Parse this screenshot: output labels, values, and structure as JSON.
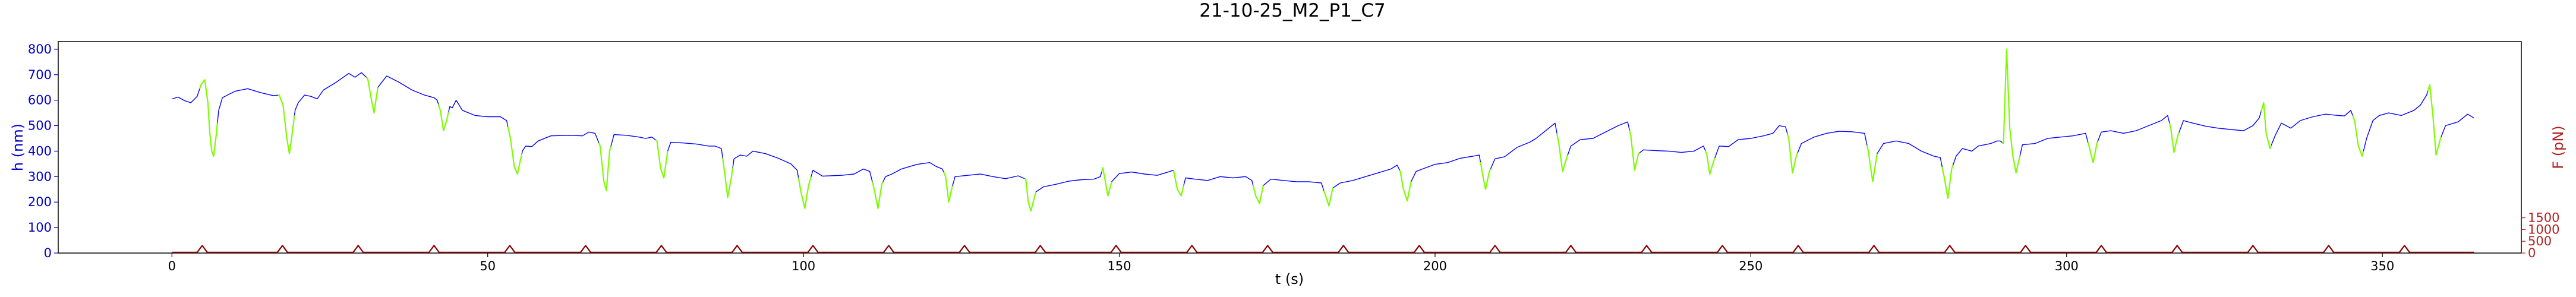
{
  "chart_data": {
    "type": "line",
    "title": "21-10-25_M2_P1_C7",
    "xlabel": "t (s)",
    "ylabel_left": "h (nm)",
    "ylabel_right": "F (pN)",
    "xlim": [
      -18,
      372
    ],
    "ylim_left": [
      0,
      830
    ],
    "ylim_right": [
      0,
      9000
    ],
    "x_ticks": [
      0,
      50,
      100,
      150,
      200,
      250,
      300,
      350
    ],
    "y_ticks_left": [
      0,
      100,
      200,
      300,
      400,
      500,
      600,
      700,
      800
    ],
    "y_ticks_right": [
      0,
      500,
      1000,
      1500
    ],
    "colors": {
      "height_trace": "#0000ff",
      "approach_segments": "#7cfc00",
      "force_trace": "#8b0000",
      "left_axis": "#0000cd",
      "right_axis": "#b22222"
    },
    "height_keypoints": [
      [
        0,
        605
      ],
      [
        1,
        612
      ],
      [
        2,
        598
      ],
      [
        3,
        590
      ],
      [
        4,
        615
      ],
      [
        4.6,
        660
      ],
      [
        5.2,
        680
      ],
      [
        5.7,
        590
      ],
      [
        6,
        470
      ],
      [
        6.3,
        400
      ],
      [
        6.6,
        380
      ],
      [
        7,
        460
      ],
      [
        7.4,
        560
      ],
      [
        8,
        610
      ],
      [
        10,
        635
      ],
      [
        12,
        645
      ],
      [
        14,
        630
      ],
      [
        16,
        618
      ],
      [
        17,
        620
      ],
      [
        17.6,
        580
      ],
      [
        18.2,
        450
      ],
      [
        18.6,
        390
      ],
      [
        19,
        460
      ],
      [
        19.5,
        560
      ],
      [
        20,
        590
      ],
      [
        21,
        620
      ],
      [
        22,
        615
      ],
      [
        23,
        605
      ],
      [
        24,
        640
      ],
      [
        26,
        670
      ],
      [
        28,
        705
      ],
      [
        29,
        690
      ],
      [
        30,
        708
      ],
      [
        31,
        685
      ],
      [
        31.6,
        600
      ],
      [
        32,
        550
      ],
      [
        32.6,
        650
      ],
      [
        34,
        695
      ],
      [
        36,
        670
      ],
      [
        38,
        640
      ],
      [
        40,
        620
      ],
      [
        41.5,
        610
      ],
      [
        42,
        600
      ],
      [
        42.5,
        560
      ],
      [
        43,
        480
      ],
      [
        43.5,
        520
      ],
      [
        44,
        575
      ],
      [
        44.4,
        570
      ],
      [
        45,
        600
      ],
      [
        46,
        560
      ],
      [
        48,
        540
      ],
      [
        50,
        535
      ],
      [
        52,
        535
      ],
      [
        53,
        520
      ],
      [
        53.6,
        450
      ],
      [
        54.2,
        340
      ],
      [
        54.7,
        310
      ],
      [
        55.5,
        400
      ],
      [
        56,
        420
      ],
      [
        57,
        418
      ],
      [
        58,
        440
      ],
      [
        60,
        460
      ],
      [
        63,
        462
      ],
      [
        65,
        460
      ],
      [
        66,
        475
      ],
      [
        67,
        470
      ],
      [
        67.8,
        420
      ],
      [
        68.4,
        280
      ],
      [
        68.8,
        245
      ],
      [
        69.3,
        400
      ],
      [
        70,
        465
      ],
      [
        72,
        462
      ],
      [
        74,
        455
      ],
      [
        75,
        450
      ],
      [
        76,
        455
      ],
      [
        76.8,
        440
      ],
      [
        77.4,
        330
      ],
      [
        77.9,
        295
      ],
      [
        78.5,
        400
      ],
      [
        79,
        435
      ],
      [
        81,
        432
      ],
      [
        83,
        428
      ],
      [
        85,
        420
      ],
      [
        86,
        420
      ],
      [
        87,
        410
      ],
      [
        87.6,
        300
      ],
      [
        88,
        218
      ],
      [
        88.6,
        300
      ],
      [
        89,
        370
      ],
      [
        90,
        385
      ],
      [
        91,
        380
      ],
      [
        92,
        400
      ],
      [
        94,
        390
      ],
      [
        96,
        372
      ],
      [
        98,
        350
      ],
      [
        99,
        325
      ],
      [
        99.6,
        240
      ],
      [
        100.2,
        175
      ],
      [
        100.8,
        265
      ],
      [
        101.5,
        325
      ],
      [
        103,
        302
      ],
      [
        106,
        305
      ],
      [
        108,
        310
      ],
      [
        109.5,
        330
      ],
      [
        110.5,
        320
      ],
      [
        111.2,
        250
      ],
      [
        111.8,
        175
      ],
      [
        112.4,
        270
      ],
      [
        113,
        300
      ],
      [
        114,
        310
      ],
      [
        115.5,
        330
      ],
      [
        118,
        348
      ],
      [
        120,
        355
      ],
      [
        121,
        340
      ],
      [
        122,
        330
      ],
      [
        122.5,
        300
      ],
      [
        123,
        200
      ],
      [
        123.4,
        245
      ],
      [
        124,
        300
      ],
      [
        126,
        305
      ],
      [
        128,
        310
      ],
      [
        130,
        300
      ],
      [
        132,
        292
      ],
      [
        134,
        303
      ],
      [
        135.2,
        290
      ],
      [
        135.6,
        200
      ],
      [
        136,
        165
      ],
      [
        136.8,
        240
      ],
      [
        138,
        260
      ],
      [
        140,
        270
      ],
      [
        142,
        282
      ],
      [
        144,
        288
      ],
      [
        146,
        290
      ],
      [
        147,
        300
      ],
      [
        147.4,
        335
      ],
      [
        147.8,
        280
      ],
      [
        148.2,
        225
      ],
      [
        148.8,
        280
      ],
      [
        150,
        312
      ],
      [
        152,
        318
      ],
      [
        154,
        310
      ],
      [
        156,
        305
      ],
      [
        158,
        320
      ],
      [
        158.6,
        325
      ],
      [
        159.2,
        250
      ],
      [
        159.8,
        225
      ],
      [
        160.5,
        295
      ],
      [
        162,
        290
      ],
      [
        164,
        285
      ],
      [
        166,
        300
      ],
      [
        168,
        295
      ],
      [
        170,
        300
      ],
      [
        171,
        285
      ],
      [
        171.6,
        225
      ],
      [
        172.2,
        195
      ],
      [
        172.8,
        265
      ],
      [
        174,
        290
      ],
      [
        176,
        285
      ],
      [
        178,
        280
      ],
      [
        180,
        280
      ],
      [
        182,
        275
      ],
      [
        182.6,
        230
      ],
      [
        183.2,
        185
      ],
      [
        183.8,
        255
      ],
      [
        185,
        275
      ],
      [
        187,
        285
      ],
      [
        189,
        300
      ],
      [
        191,
        315
      ],
      [
        193,
        330
      ],
      [
        194,
        345
      ],
      [
        194.5,
        320
      ],
      [
        195,
        250
      ],
      [
        195.6,
        205
      ],
      [
        196.2,
        280
      ],
      [
        197,
        320
      ],
      [
        198,
        330
      ],
      [
        200,
        348
      ],
      [
        202,
        355
      ],
      [
        204,
        372
      ],
      [
        206,
        380
      ],
      [
        207,
        385
      ],
      [
        207.6,
        300
      ],
      [
        208,
        250
      ],
      [
        208.6,
        320
      ],
      [
        209.5,
        370
      ],
      [
        211,
        378
      ],
      [
        213,
        415
      ],
      [
        215,
        435
      ],
      [
        216,
        450
      ],
      [
        217,
        470
      ],
      [
        218,
        490
      ],
      [
        219,
        510
      ],
      [
        219.6,
        430
      ],
      [
        220.2,
        320
      ],
      [
        220.8,
        370
      ],
      [
        221.5,
        420
      ],
      [
        223,
        445
      ],
      [
        225,
        450
      ],
      [
        227,
        475
      ],
      [
        229,
        500
      ],
      [
        230.5,
        515
      ],
      [
        231,
        460
      ],
      [
        231.6,
        325
      ],
      [
        232.2,
        390
      ],
      [
        233,
        405
      ],
      [
        235,
        402
      ],
      [
        237,
        400
      ],
      [
        239,
        395
      ],
      [
        241,
        400
      ],
      [
        242.5,
        420
      ],
      [
        243,
        390
      ],
      [
        243.5,
        310
      ],
      [
        244.1,
        360
      ],
      [
        245,
        420
      ],
      [
        246.5,
        418
      ],
      [
        248,
        445
      ],
      [
        250,
        450
      ],
      [
        252,
        460
      ],
      [
        253.5,
        470
      ],
      [
        254.5,
        500
      ],
      [
        255.5,
        495
      ],
      [
        256,
        450
      ],
      [
        256.6,
        315
      ],
      [
        257.2,
        380
      ],
      [
        258,
        430
      ],
      [
        260,
        455
      ],
      [
        262,
        470
      ],
      [
        264,
        478
      ],
      [
        266,
        476
      ],
      [
        268,
        470
      ],
      [
        268.6,
        400
      ],
      [
        269.3,
        280
      ],
      [
        270,
        390
      ],
      [
        271,
        430
      ],
      [
        273,
        440
      ],
      [
        275,
        430
      ],
      [
        277,
        400
      ],
      [
        278,
        390
      ],
      [
        279,
        380
      ],
      [
        280,
        375
      ],
      [
        280.6,
        300
      ],
      [
        281.2,
        215
      ],
      [
        281.8,
        330
      ],
      [
        282.5,
        380
      ],
      [
        283.5,
        410
      ],
      [
        285,
        400
      ],
      [
        286,
        420
      ],
      [
        288,
        430
      ],
      [
        289,
        440
      ],
      [
        289.5,
        440
      ],
      [
        290,
        430
      ],
      [
        290.5,
        800
      ],
      [
        291,
        490
      ],
      [
        291.5,
        380
      ],
      [
        292,
        315
      ],
      [
        292.6,
        380
      ],
      [
        293,
        425
      ],
      [
        295,
        430
      ],
      [
        297,
        450
      ],
      [
        299,
        455
      ],
      [
        301,
        460
      ],
      [
        302,
        465
      ],
      [
        303,
        470
      ],
      [
        303.6,
        415
      ],
      [
        304.2,
        355
      ],
      [
        304.8,
        430
      ],
      [
        305.5,
        475
      ],
      [
        307,
        480
      ],
      [
        309,
        470
      ],
      [
        311,
        480
      ],
      [
        313,
        500
      ],
      [
        315,
        520
      ],
      [
        316,
        540
      ],
      [
        316.5,
        490
      ],
      [
        317,
        395
      ],
      [
        317.6,
        460
      ],
      [
        318.5,
        520
      ],
      [
        320,
        510
      ],
      [
        322,
        498
      ],
      [
        324,
        490
      ],
      [
        326,
        485
      ],
      [
        328,
        480
      ],
      [
        329.5,
        500
      ],
      [
        330.5,
        530
      ],
      [
        331.2,
        590
      ],
      [
        331.6,
        470
      ],
      [
        332.2,
        410
      ],
      [
        333,
        460
      ],
      [
        334,
        510
      ],
      [
        335.5,
        490
      ],
      [
        337,
        520
      ],
      [
        339,
        535
      ],
      [
        341,
        545
      ],
      [
        343,
        540
      ],
      [
        344,
        538
      ],
      [
        345,
        560
      ],
      [
        345.6,
        520
      ],
      [
        346.2,
        420
      ],
      [
        346.8,
        380
      ],
      [
        347.5,
        450
      ],
      [
        348.5,
        520
      ],
      [
        349.5,
        540
      ],
      [
        351,
        550
      ],
      [
        353,
        540
      ],
      [
        355,
        560
      ],
      [
        356,
        580
      ],
      [
        357,
        620
      ],
      [
        357.5,
        660
      ],
      [
        358,
        540
      ],
      [
        358.5,
        385
      ],
      [
        359.2,
        450
      ],
      [
        360,
        500
      ],
      [
        362,
        515
      ],
      [
        363.5,
        545
      ],
      [
        364.5,
        530
      ]
    ],
    "approach_windows": [
      [
        4.4,
        7.2
      ],
      [
        16.8,
        19.4
      ],
      [
        30.8,
        32.6
      ],
      [
        42.2,
        43.8
      ],
      [
        53.2,
        55.4
      ],
      [
        67.6,
        69.5
      ],
      [
        76.6,
        78.5
      ],
      [
        87.2,
        88.8
      ],
      [
        99.2,
        101.2
      ],
      [
        110.9,
        112.6
      ],
      [
        122.2,
        123.6
      ],
      [
        135,
        136.8
      ],
      [
        147.2,
        148.8
      ],
      [
        158.6,
        160.2
      ],
      [
        171.2,
        172.8
      ],
      [
        182.4,
        183.9
      ],
      [
        194.4,
        196.2
      ],
      [
        207.2,
        208.8
      ],
      [
        219.3,
        221
      ],
      [
        230.8,
        232.4
      ],
      [
        242.8,
        244.3
      ],
      [
        255.8,
        257.4
      ],
      [
        268.4,
        270
      ],
      [
        280.3,
        282
      ],
      [
        289.8,
        292.6
      ],
      [
        303.4,
        304.9
      ],
      [
        316.3,
        317.8
      ],
      [
        330.8,
        332.4
      ],
      [
        345.3,
        347
      ],
      [
        357.2,
        359.3
      ]
    ],
    "force_peak_times": [
      4.8,
      17.5,
      29.5,
      41.5,
      53.5,
      65.5,
      77.5,
      89.5,
      101.5,
      113.5,
      125.5,
      137.5,
      149.5,
      161.5,
      173.5,
      185.5,
      197.5,
      209.5,
      221.5,
      233.5,
      245.5,
      257.5,
      269.5,
      281.5,
      293.5,
      305.5,
      317.5,
      329.5,
      341.5,
      353.5
    ],
    "force_baseline": 30,
    "force_peak_value": 320,
    "t_end": 364.5
  }
}
